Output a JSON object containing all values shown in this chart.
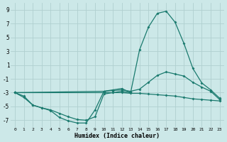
{
  "xlabel": "Humidex (Indice chaleur)",
  "bg_color": "#cce8e8",
  "grid_color": "#b0d0d0",
  "line_color": "#1a7a6e",
  "xlim": [
    -0.5,
    23.5
  ],
  "ylim": [
    -8,
    10
  ],
  "xticks": [
    0,
    1,
    2,
    3,
    4,
    5,
    6,
    7,
    8,
    9,
    10,
    11,
    12,
    13,
    14,
    15,
    16,
    17,
    18,
    19,
    20,
    21,
    22,
    23
  ],
  "yticks": [
    -7,
    -5,
    -3,
    -1,
    1,
    3,
    5,
    7,
    9
  ],
  "line1_x": [
    0,
    1,
    2,
    3,
    4,
    5,
    6,
    7,
    8,
    9,
    10,
    11,
    12,
    13,
    14,
    15,
    16,
    17,
    18,
    19,
    20,
    21,
    22,
    23
  ],
  "line1_y": [
    -3,
    -3.5,
    -4.8,
    -5.2,
    -5.6,
    -6.6,
    -7.1,
    -7.4,
    -7.4,
    -5.5,
    -2.8,
    -2.6,
    -2.4,
    -3.0,
    3.2,
    6.5,
    8.5,
    8.8,
    7.2,
    4.1,
    0.5,
    -1.6,
    -2.6,
    -3.8
  ],
  "line2_x": [
    0,
    10,
    11,
    12,
    13,
    14,
    15,
    16,
    17,
    18,
    19,
    20,
    21,
    22,
    23
  ],
  "line2_y": [
    -3,
    -2.8,
    -2.7,
    -2.6,
    -2.8,
    -2.5,
    -1.5,
    -0.5,
    0.0,
    -0.3,
    -0.6,
    -1.5,
    -2.2,
    -2.8,
    -4.0
  ],
  "line3_x": [
    0,
    10,
    11,
    12,
    13,
    14,
    15,
    16,
    17,
    18,
    19,
    20,
    21,
    22,
    23
  ],
  "line3_y": [
    -3,
    -3.0,
    -3.0,
    -3.0,
    -3.1,
    -3.1,
    -3.2,
    -3.3,
    -3.4,
    -3.5,
    -3.7,
    -3.9,
    -4.0,
    -4.1,
    -4.2
  ],
  "line4_x": [
    0,
    1,
    2,
    3,
    4,
    5,
    6,
    7,
    8,
    9,
    10,
    11,
    12,
    13
  ],
  "line4_y": [
    -3,
    -3.7,
    -4.8,
    -5.2,
    -5.5,
    -6.0,
    -6.5,
    -6.9,
    -7.0,
    -6.5,
    -3.2,
    -3.0,
    -2.8,
    -3.0
  ]
}
